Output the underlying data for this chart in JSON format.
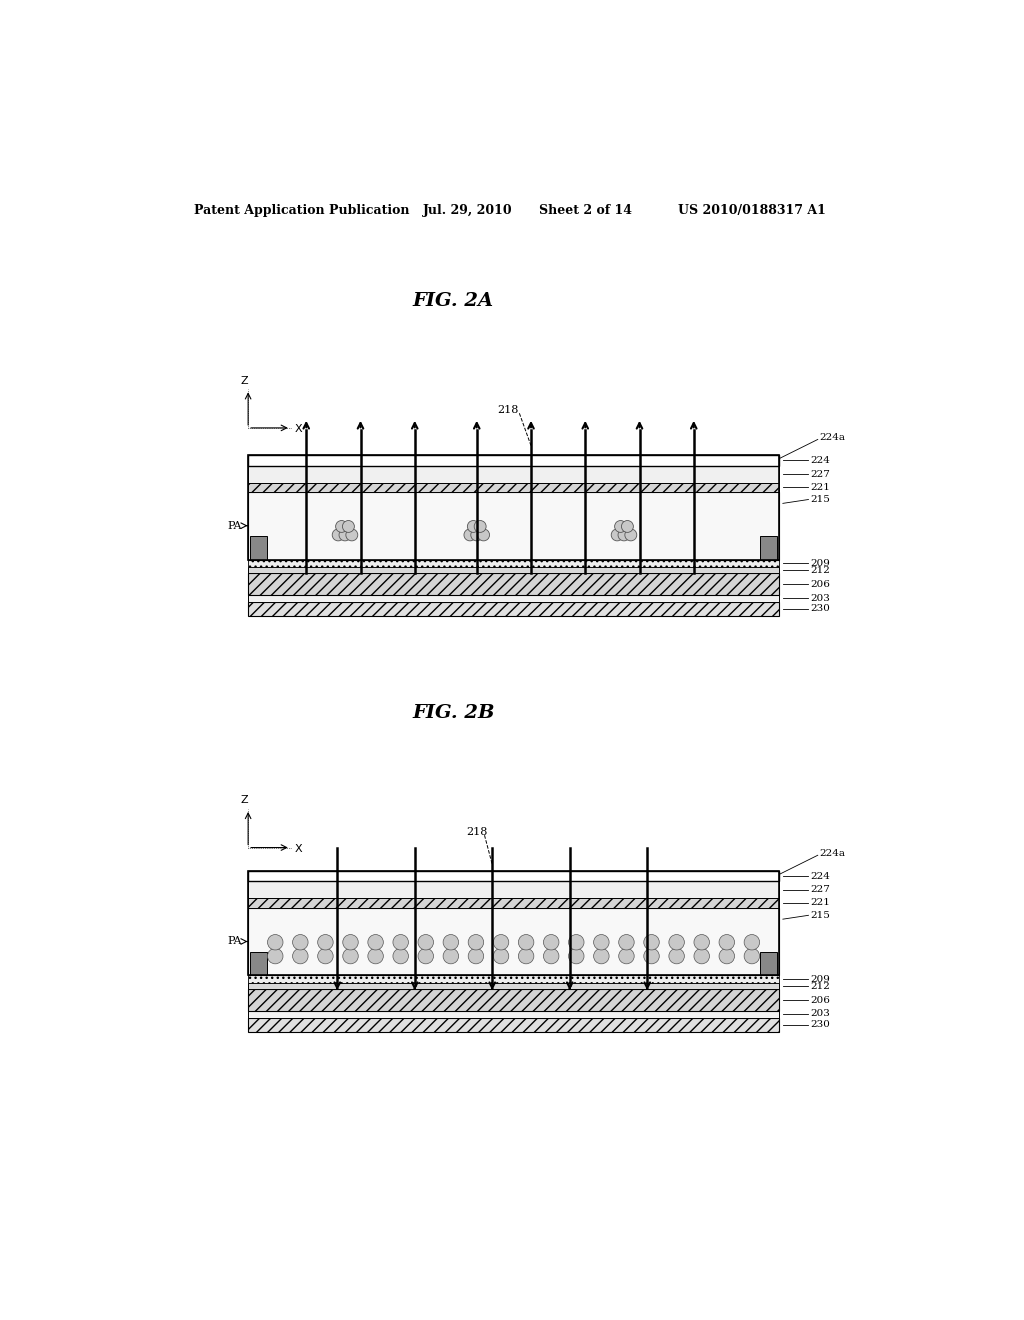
{
  "bg_color": "#ffffff",
  "header_text": "Patent Application Publication",
  "header_date": "Jul. 29, 2010",
  "header_sheet": "Sheet 2 of 14",
  "header_patent": "US 2010/0188317 A1",
  "fig2a_title": "FIG. 2A",
  "fig2b_title": "FIG. 2B"
}
